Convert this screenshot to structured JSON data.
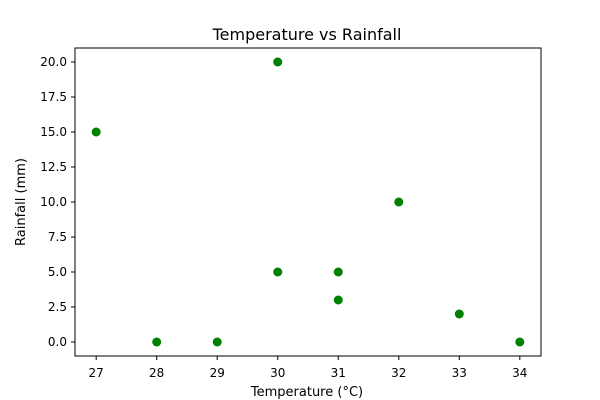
{
  "chart_data": {
    "type": "scatter",
    "title": "Temperature vs Rainfall",
    "xlabel": "Temperature (°C)",
    "ylabel": "Rainfall (mm)",
    "xlim": [
      26.65,
      34.35
    ],
    "ylim": [
      -1.0,
      21.0
    ],
    "x_ticks": [
      27,
      28,
      29,
      30,
      31,
      32,
      33,
      34
    ],
    "y_ticks": [
      0.0,
      2.5,
      5.0,
      7.5,
      10.0,
      12.5,
      15.0,
      17.5,
      20.0
    ],
    "x_tick_labels": [
      "27",
      "28",
      "29",
      "30",
      "31",
      "32",
      "33",
      "34"
    ],
    "y_tick_labels": [
      "0.0",
      "2.5",
      "5.0",
      "7.5",
      "10.0",
      "12.5",
      "15.0",
      "17.5",
      "20.0"
    ],
    "grid": false,
    "legend": "none",
    "marker_color": "#008000",
    "points": [
      {
        "x": 27,
        "y": 15
      },
      {
        "x": 28,
        "y": 0
      },
      {
        "x": 29,
        "y": 0
      },
      {
        "x": 30,
        "y": 20
      },
      {
        "x": 30,
        "y": 5
      },
      {
        "x": 31,
        "y": 5
      },
      {
        "x": 31,
        "y": 3
      },
      {
        "x": 32,
        "y": 10
      },
      {
        "x": 33,
        "y": 2
      },
      {
        "x": 34,
        "y": 0
      }
    ]
  }
}
